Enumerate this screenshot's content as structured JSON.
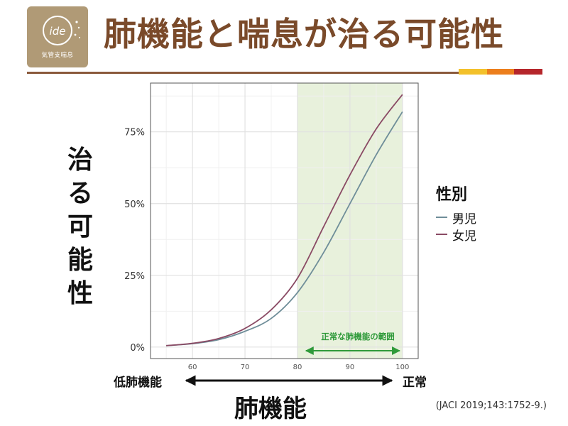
{
  "header": {
    "title": "肺機能と喘息が治る可能性",
    "logo_text": "ide",
    "logo_caption": "気管支喘息"
  },
  "colors": {
    "title": "#7a4a2a",
    "rule": "#8a5a3c",
    "bar1": "#f3c12b",
    "bar2": "#ec7e1c",
    "bar3": "#b5262b",
    "normal_range_fill": "#e8f1dc",
    "arrow_green": "#2f9a3a"
  },
  "axis_labels": {
    "y_vertical": [
      "治",
      "る",
      "可",
      "能",
      "性"
    ],
    "x": "肺機能",
    "x_left_end": "低肺機能",
    "x_right_end": "正常"
  },
  "legend": {
    "title": "性別",
    "items": [
      {
        "label": "男児",
        "color": "#6f8e99"
      },
      {
        "label": "女児",
        "color": "#8a4a64"
      }
    ]
  },
  "annotation": {
    "normal_range_label": "正常な肺機能の範囲",
    "normal_range": [
      80,
      100
    ]
  },
  "citation": "(JACI 2019;143:1752-9.)",
  "chart_data": {
    "type": "line",
    "xlim": [
      52,
      103
    ],
    "ylim": [
      -0.04,
      0.92
    ],
    "x_ticks": [
      60,
      70,
      80,
      90,
      100
    ],
    "y_ticks": [
      0,
      0.25,
      0.5,
      0.75
    ],
    "y_tick_labels": [
      "0%",
      "25%",
      "50%",
      "75%"
    ],
    "grid": true,
    "legend_position": "right",
    "x": [
      55,
      60,
      65,
      70,
      75,
      80,
      85,
      90,
      95,
      100
    ],
    "series": [
      {
        "name": "男児",
        "color": "#6f8e99",
        "values": [
          0.005,
          0.012,
          0.026,
          0.055,
          0.1,
          0.19,
          0.33,
          0.5,
          0.67,
          0.82
        ]
      },
      {
        "name": "女児",
        "color": "#8a4a64",
        "values": [
          0.005,
          0.013,
          0.03,
          0.065,
          0.13,
          0.24,
          0.42,
          0.6,
          0.76,
          0.88
        ]
      }
    ]
  }
}
